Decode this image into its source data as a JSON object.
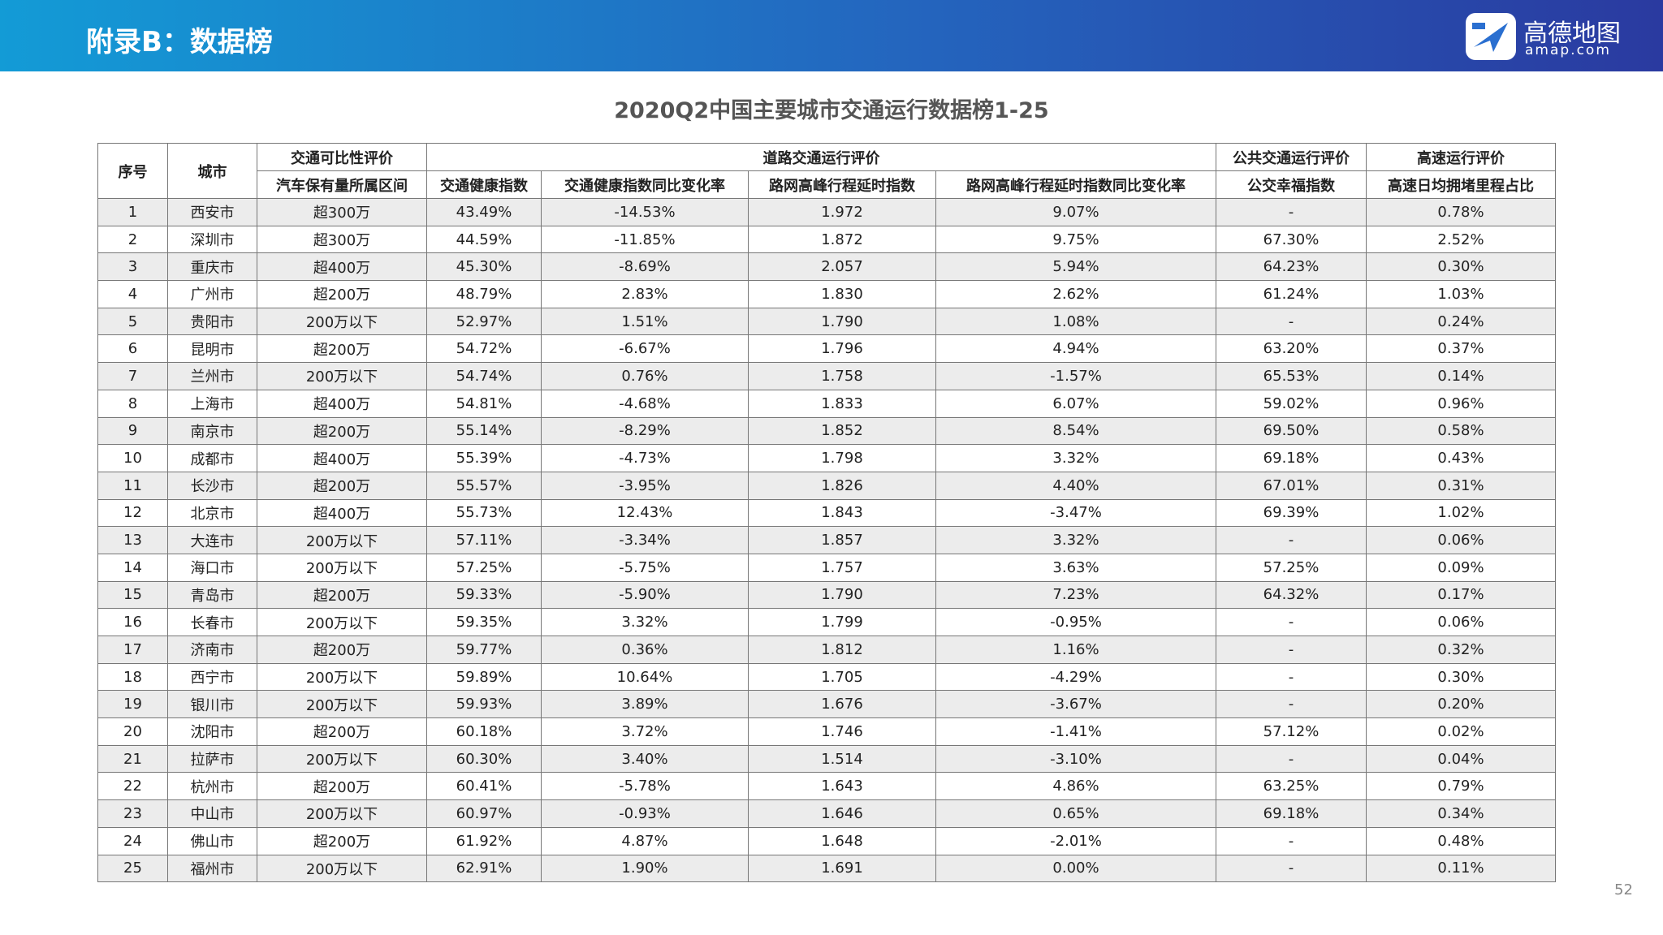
{
  "header": {
    "title": "附录B：数据榜",
    "logo_name": "高德地图",
    "logo_domain": "amap.com"
  },
  "table": {
    "title": "2020Q2中国主要城市交通运行数据榜1-25",
    "group_headers": [
      "序号",
      "城市",
      "交通可比性评价",
      "道路交通运行评价",
      "公共交通运行评价",
      "高速运行评价"
    ],
    "column_headers": [
      "汽车保有量所属区间",
      "交通健康指数",
      "交通健康指数同比变化率",
      "路网高峰行程延时指数",
      "路网高峰行程延时指数同比变化率",
      "公交幸福指数",
      "高速日均拥堵里程占比"
    ],
    "rows": [
      [
        "1",
        "西安市",
        "超300万",
        "43.49%",
        "-14.53%",
        "1.972",
        "9.07%",
        "-",
        "0.78%"
      ],
      [
        "2",
        "深圳市",
        "超300万",
        "44.59%",
        "-11.85%",
        "1.872",
        "9.75%",
        "67.30%",
        "2.52%"
      ],
      [
        "3",
        "重庆市",
        "超400万",
        "45.30%",
        "-8.69%",
        "2.057",
        "5.94%",
        "64.23%",
        "0.30%"
      ],
      [
        "4",
        "广州市",
        "超200万",
        "48.79%",
        "2.83%",
        "1.830",
        "2.62%",
        "61.24%",
        "1.03%"
      ],
      [
        "5",
        "贵阳市",
        "200万以下",
        "52.97%",
        "1.51%",
        "1.790",
        "1.08%",
        "-",
        "0.24%"
      ],
      [
        "6",
        "昆明市",
        "超200万",
        "54.72%",
        "-6.67%",
        "1.796",
        "4.94%",
        "63.20%",
        "0.37%"
      ],
      [
        "7",
        "兰州市",
        "200万以下",
        "54.74%",
        "0.76%",
        "1.758",
        "-1.57%",
        "65.53%",
        "0.14%"
      ],
      [
        "8",
        "上海市",
        "超400万",
        "54.81%",
        "-4.68%",
        "1.833",
        "6.07%",
        "59.02%",
        "0.96%"
      ],
      [
        "9",
        "南京市",
        "超200万",
        "55.14%",
        "-8.29%",
        "1.852",
        "8.54%",
        "69.50%",
        "0.58%"
      ],
      [
        "10",
        "成都市",
        "超400万",
        "55.39%",
        "-4.73%",
        "1.798",
        "3.32%",
        "69.18%",
        "0.43%"
      ],
      [
        "11",
        "长沙市",
        "超200万",
        "55.57%",
        "-3.95%",
        "1.826",
        "4.40%",
        "67.01%",
        "0.31%"
      ],
      [
        "12",
        "北京市",
        "超400万",
        "55.73%",
        "12.43%",
        "1.843",
        "-3.47%",
        "69.39%",
        "1.02%"
      ],
      [
        "13",
        "大连市",
        "200万以下",
        "57.11%",
        "-3.34%",
        "1.857",
        "3.32%",
        "-",
        "0.06%"
      ],
      [
        "14",
        "海口市",
        "200万以下",
        "57.25%",
        "-5.75%",
        "1.757",
        "3.63%",
        "57.25%",
        "0.09%"
      ],
      [
        "15",
        "青岛市",
        "超200万",
        "59.33%",
        "-5.90%",
        "1.790",
        "7.23%",
        "64.32%",
        "0.17%"
      ],
      [
        "16",
        "长春市",
        "200万以下",
        "59.35%",
        "3.32%",
        "1.799",
        "-0.95%",
        "-",
        "0.06%"
      ],
      [
        "17",
        "济南市",
        "超200万",
        "59.77%",
        "0.36%",
        "1.812",
        "1.16%",
        "-",
        "0.32%"
      ],
      [
        "18",
        "西宁市",
        "200万以下",
        "59.89%",
        "10.64%",
        "1.705",
        "-4.29%",
        "-",
        "0.30%"
      ],
      [
        "19",
        "银川市",
        "200万以下",
        "59.93%",
        "3.89%",
        "1.676",
        "-3.67%",
        "-",
        "0.20%"
      ],
      [
        "20",
        "沈阳市",
        "超200万",
        "60.18%",
        "3.72%",
        "1.746",
        "-1.41%",
        "57.12%",
        "0.02%"
      ],
      [
        "21",
        "拉萨市",
        "200万以下",
        "60.30%",
        "3.40%",
        "1.514",
        "-3.10%",
        "-",
        "0.04%"
      ],
      [
        "22",
        "杭州市",
        "超200万",
        "60.41%",
        "-5.78%",
        "1.643",
        "4.86%",
        "63.25%",
        "0.79%"
      ],
      [
        "23",
        "中山市",
        "200万以下",
        "60.97%",
        "-0.93%",
        "1.646",
        "0.65%",
        "69.18%",
        "0.34%"
      ],
      [
        "24",
        "佛山市",
        "超200万",
        "61.92%",
        "4.87%",
        "1.648",
        "-2.01%",
        "-",
        "0.48%"
      ],
      [
        "25",
        "福州市",
        "200万以下",
        "62.91%",
        "1.90%",
        "1.691",
        "0.00%",
        "-",
        "0.11%"
      ]
    ]
  },
  "page_number": "52"
}
